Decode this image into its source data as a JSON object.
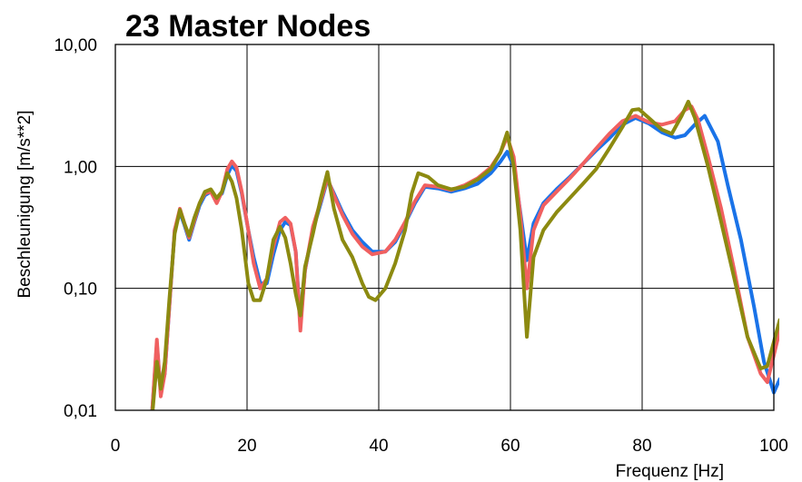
{
  "chart_data": {
    "type": "line",
    "title": "23 Master Nodes",
    "xlabel": "Frequenz [Hz]",
    "ylabel": "Beschleunigung [m/s**2]",
    "xlim": [
      0,
      100
    ],
    "ylim": [
      0.01,
      10
    ],
    "yscale": "log",
    "grid": true,
    "legend": "none",
    "x_ticks": [
      0,
      20,
      40,
      60,
      80,
      100
    ],
    "x_tick_labels": [
      "0",
      "20",
      "40",
      "60",
      "80",
      "100"
    ],
    "y_ticks": [
      0.01,
      0.1,
      1,
      10
    ],
    "y_tick_labels": [
      "0,01",
      "0,10",
      "1,00",
      "10,00"
    ],
    "series": [
      {
        "color": "#1a73e8",
        "points": [
          [
            5.6,
            0.01
          ],
          [
            6.3,
            0.035
          ],
          [
            6.9,
            0.014
          ],
          [
            7.5,
            0.02
          ],
          [
            8.2,
            0.07
          ],
          [
            9.0,
            0.3
          ],
          [
            9.8,
            0.42
          ],
          [
            10.5,
            0.33
          ],
          [
            11.2,
            0.25
          ],
          [
            12.0,
            0.35
          ],
          [
            12.8,
            0.48
          ],
          [
            13.6,
            0.58
          ],
          [
            14.5,
            0.62
          ],
          [
            15.4,
            0.55
          ],
          [
            16.2,
            0.6
          ],
          [
            17.0,
            0.85
          ],
          [
            17.7,
            1.02
          ],
          [
            18.4,
            0.92
          ],
          [
            19.2,
            0.6
          ],
          [
            20.2,
            0.3
          ],
          [
            21.0,
            0.18
          ],
          [
            22.0,
            0.11
          ],
          [
            23.0,
            0.11
          ],
          [
            24.0,
            0.19
          ],
          [
            25.0,
            0.3
          ],
          [
            25.8,
            0.35
          ],
          [
            26.6,
            0.33
          ],
          [
            27.4,
            0.2
          ],
          [
            28.1,
            0.05
          ],
          [
            28.8,
            0.14
          ],
          [
            30.0,
            0.3
          ],
          [
            31.2,
            0.5
          ],
          [
            32.2,
            0.78
          ],
          [
            33.2,
            0.6
          ],
          [
            34.5,
            0.42
          ],
          [
            36.0,
            0.3
          ],
          [
            37.5,
            0.24
          ],
          [
            39.0,
            0.2
          ],
          [
            41.0,
            0.2
          ],
          [
            42.5,
            0.24
          ],
          [
            44.0,
            0.34
          ],
          [
            45.5,
            0.5
          ],
          [
            47.0,
            0.68
          ],
          [
            49.0,
            0.66
          ],
          [
            51.0,
            0.62
          ],
          [
            53.0,
            0.66
          ],
          [
            55.0,
            0.72
          ],
          [
            57.0,
            0.88
          ],
          [
            58.5,
            1.1
          ],
          [
            59.5,
            1.32
          ],
          [
            60.5,
            1.0
          ],
          [
            61.5,
            0.42
          ],
          [
            62.5,
            0.17
          ],
          [
            63.5,
            0.34
          ],
          [
            65.0,
            0.5
          ],
          [
            67.0,
            0.65
          ],
          [
            69.0,
            0.82
          ],
          [
            71.0,
            1.05
          ],
          [
            73.0,
            1.35
          ],
          [
            75.0,
            1.7
          ],
          [
            77.0,
            2.2
          ],
          [
            79.0,
            2.5
          ],
          [
            81.0,
            2.25
          ],
          [
            83.0,
            1.9
          ],
          [
            85.0,
            1.72
          ],
          [
            86.5,
            1.8
          ],
          [
            88.0,
            2.2
          ],
          [
            89.5,
            2.6
          ],
          [
            91.5,
            1.6
          ],
          [
            93.0,
            0.7
          ],
          [
            95.0,
            0.25
          ],
          [
            97.0,
            0.07
          ],
          [
            98.5,
            0.025
          ],
          [
            100.0,
            0.014
          ],
          [
            100.9,
            0.018
          ]
        ]
      },
      {
        "color": "#f06060",
        "points": [
          [
            5.6,
            0.01
          ],
          [
            6.3,
            0.038
          ],
          [
            6.9,
            0.013
          ],
          [
            7.5,
            0.02
          ],
          [
            8.2,
            0.07
          ],
          [
            9.0,
            0.3
          ],
          [
            9.8,
            0.45
          ],
          [
            10.5,
            0.34
          ],
          [
            11.2,
            0.26
          ],
          [
            12.0,
            0.36
          ],
          [
            12.8,
            0.5
          ],
          [
            13.6,
            0.6
          ],
          [
            14.5,
            0.62
          ],
          [
            15.4,
            0.5
          ],
          [
            16.2,
            0.62
          ],
          [
            17.0,
            0.95
          ],
          [
            17.7,
            1.1
          ],
          [
            18.4,
            0.98
          ],
          [
            19.2,
            0.62
          ],
          [
            20.2,
            0.3
          ],
          [
            21.0,
            0.16
          ],
          [
            22.0,
            0.1
          ],
          [
            23.0,
            0.12
          ],
          [
            24.0,
            0.22
          ],
          [
            25.0,
            0.35
          ],
          [
            25.8,
            0.38
          ],
          [
            26.6,
            0.34
          ],
          [
            27.4,
            0.2
          ],
          [
            28.1,
            0.045
          ],
          [
            28.8,
            0.14
          ],
          [
            30.0,
            0.32
          ],
          [
            31.2,
            0.52
          ],
          [
            32.2,
            0.8
          ],
          [
            33.2,
            0.58
          ],
          [
            34.5,
            0.4
          ],
          [
            36.0,
            0.28
          ],
          [
            37.5,
            0.22
          ],
          [
            39.0,
            0.19
          ],
          [
            41.0,
            0.2
          ],
          [
            42.5,
            0.25
          ],
          [
            44.0,
            0.35
          ],
          [
            45.5,
            0.52
          ],
          [
            47.0,
            0.7
          ],
          [
            49.0,
            0.68
          ],
          [
            51.0,
            0.64
          ],
          [
            53.0,
            0.7
          ],
          [
            55.0,
            0.8
          ],
          [
            57.0,
            0.98
          ],
          [
            58.5,
            1.3
          ],
          [
            59.5,
            1.75
          ],
          [
            60.5,
            1.2
          ],
          [
            61.5,
            0.4
          ],
          [
            62.5,
            0.1
          ],
          [
            63.5,
            0.3
          ],
          [
            65.0,
            0.48
          ],
          [
            67.0,
            0.62
          ],
          [
            69.0,
            0.8
          ],
          [
            71.0,
            1.05
          ],
          [
            73.0,
            1.4
          ],
          [
            75.0,
            1.85
          ],
          [
            77.0,
            2.35
          ],
          [
            79.0,
            2.6
          ],
          [
            81.0,
            2.3
          ],
          [
            83.0,
            2.2
          ],
          [
            85.0,
            2.35
          ],
          [
            86.5,
            2.9
          ],
          [
            87.5,
            3.1
          ],
          [
            88.5,
            2.4
          ],
          [
            90.0,
            1.2
          ],
          [
            92.0,
            0.45
          ],
          [
            94.0,
            0.14
          ],
          [
            96.0,
            0.04
          ],
          [
            98.0,
            0.02
          ],
          [
            99.0,
            0.017
          ],
          [
            100.9,
            0.045
          ]
        ]
      },
      {
        "color": "#8c8a10",
        "points": [
          [
            5.6,
            0.009
          ],
          [
            6.3,
            0.025
          ],
          [
            6.9,
            0.015
          ],
          [
            7.5,
            0.025
          ],
          [
            8.2,
            0.08
          ],
          [
            9.0,
            0.28
          ],
          [
            9.8,
            0.44
          ],
          [
            10.5,
            0.34
          ],
          [
            11.2,
            0.27
          ],
          [
            12.0,
            0.38
          ],
          [
            12.8,
            0.5
          ],
          [
            13.6,
            0.62
          ],
          [
            14.5,
            0.65
          ],
          [
            15.4,
            0.55
          ],
          [
            16.2,
            0.62
          ],
          [
            17.0,
            0.88
          ],
          [
            17.7,
            0.75
          ],
          [
            18.4,
            0.55
          ],
          [
            19.2,
            0.3
          ],
          [
            20.2,
            0.11
          ],
          [
            21.0,
            0.08
          ],
          [
            22.0,
            0.08
          ],
          [
            23.0,
            0.12
          ],
          [
            24.0,
            0.25
          ],
          [
            25.0,
            0.32
          ],
          [
            25.8,
            0.26
          ],
          [
            26.6,
            0.16
          ],
          [
            27.4,
            0.09
          ],
          [
            28.1,
            0.06
          ],
          [
            28.8,
            0.15
          ],
          [
            30.0,
            0.28
          ],
          [
            31.2,
            0.55
          ],
          [
            32.2,
            0.9
          ],
          [
            33.2,
            0.45
          ],
          [
            34.5,
            0.25
          ],
          [
            36.0,
            0.18
          ],
          [
            37.5,
            0.11
          ],
          [
            38.5,
            0.085
          ],
          [
            39.5,
            0.08
          ],
          [
            41.0,
            0.1
          ],
          [
            42.5,
            0.16
          ],
          [
            44.0,
            0.3
          ],
          [
            45.0,
            0.6
          ],
          [
            46.0,
            0.88
          ],
          [
            47.5,
            0.82
          ],
          [
            49.0,
            0.7
          ],
          [
            51.0,
            0.65
          ],
          [
            53.0,
            0.68
          ],
          [
            55.0,
            0.78
          ],
          [
            57.0,
            0.95
          ],
          [
            58.5,
            1.3
          ],
          [
            59.5,
            1.9
          ],
          [
            60.5,
            1.0
          ],
          [
            61.5,
            0.3
          ],
          [
            62.5,
            0.04
          ],
          [
            63.5,
            0.18
          ],
          [
            65.0,
            0.3
          ],
          [
            67.0,
            0.42
          ],
          [
            69.0,
            0.55
          ],
          [
            71.0,
            0.72
          ],
          [
            73.0,
            0.95
          ],
          [
            75.0,
            1.4
          ],
          [
            77.0,
            2.1
          ],
          [
            78.5,
            2.9
          ],
          [
            79.5,
            2.95
          ],
          [
            81.0,
            2.5
          ],
          [
            83.0,
            2.0
          ],
          [
            84.5,
            1.85
          ],
          [
            86.0,
            2.6
          ],
          [
            87.0,
            3.4
          ],
          [
            88.0,
            2.5
          ],
          [
            90.0,
            1.0
          ],
          [
            92.0,
            0.35
          ],
          [
            94.0,
            0.12
          ],
          [
            96.0,
            0.04
          ],
          [
            98.0,
            0.022
          ],
          [
            99.0,
            0.023
          ],
          [
            100.9,
            0.055
          ]
        ]
      }
    ]
  }
}
